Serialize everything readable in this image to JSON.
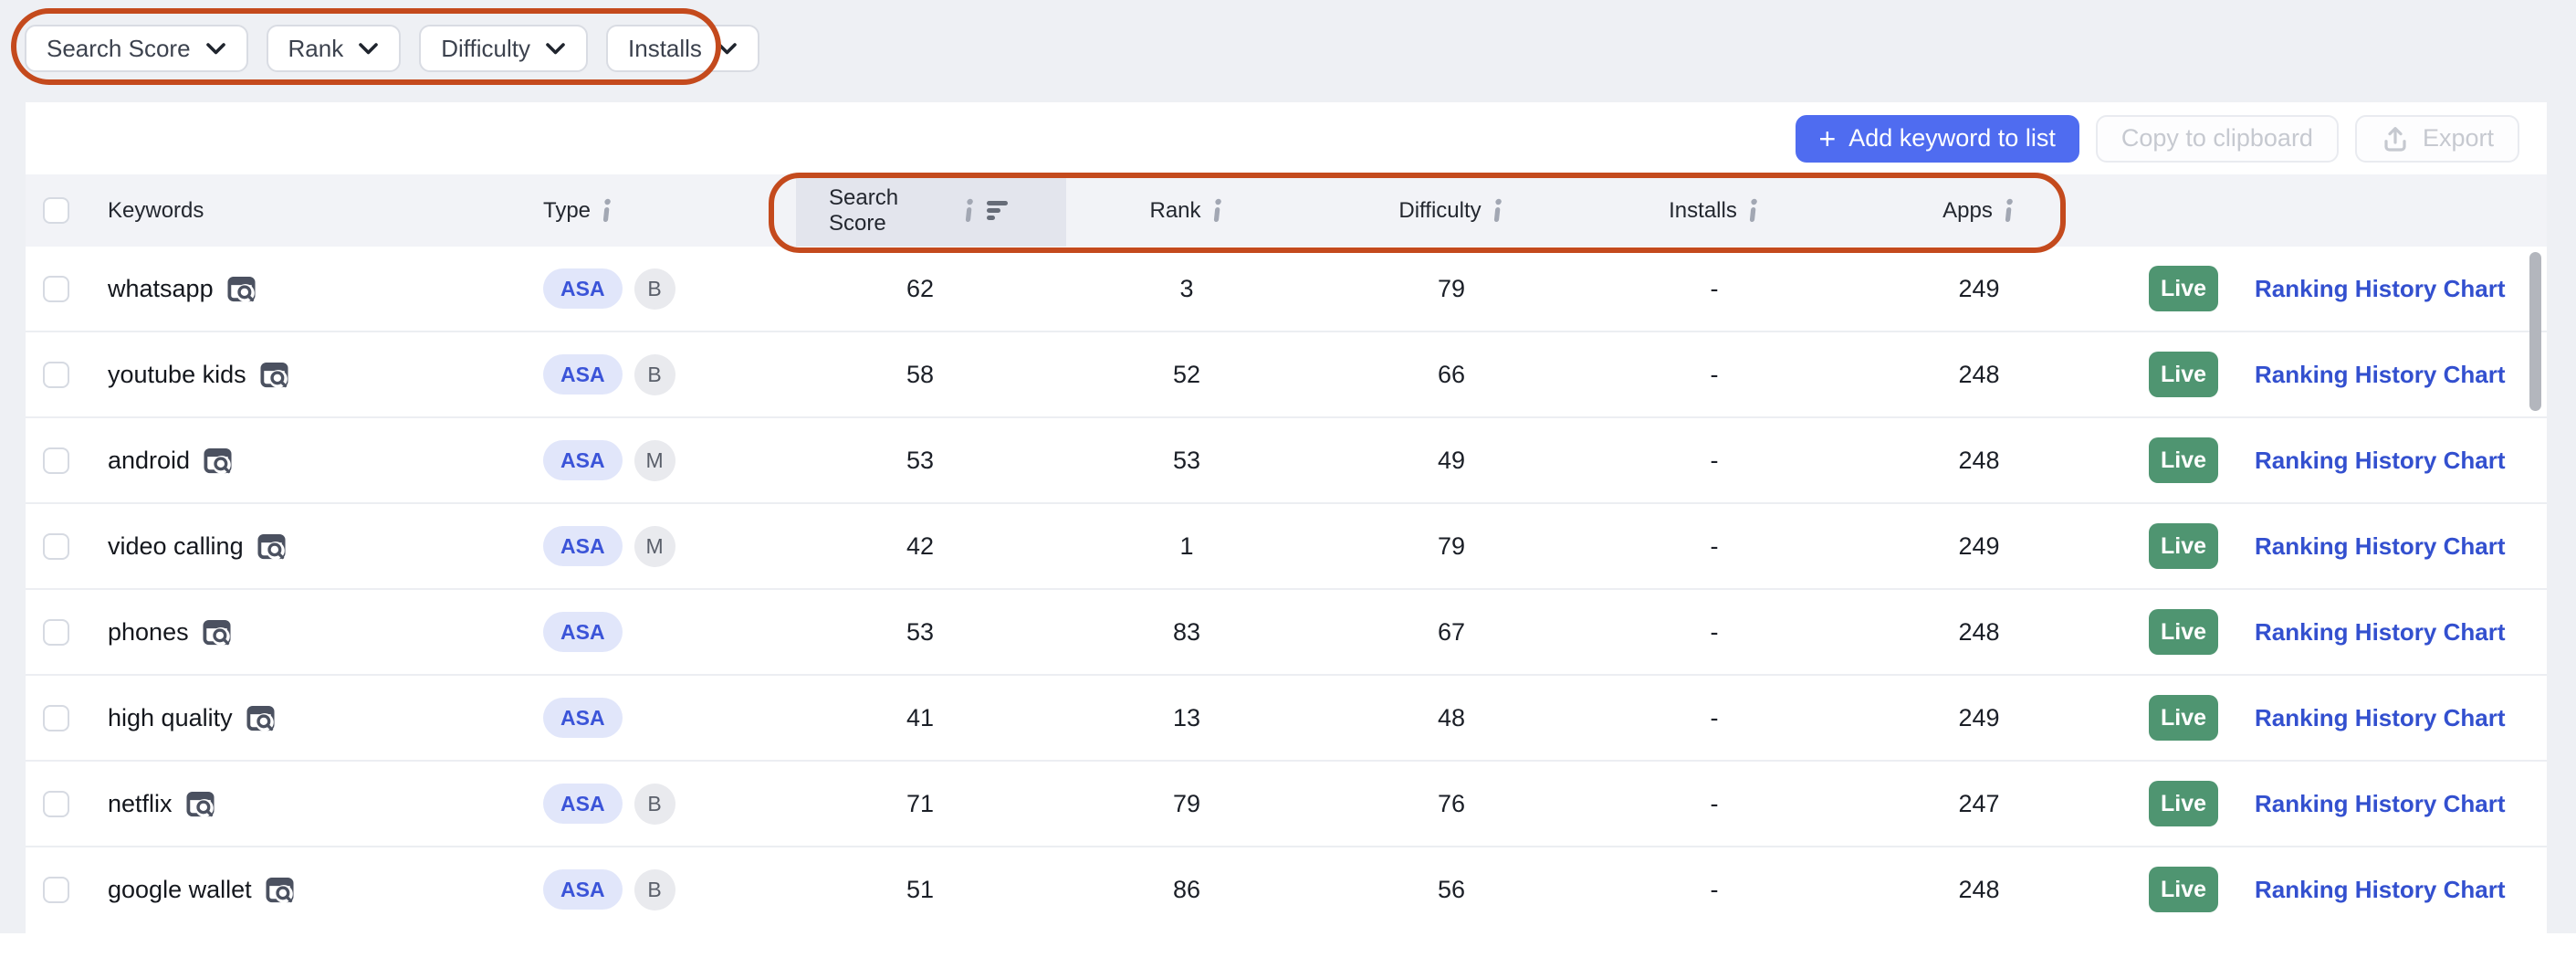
{
  "filters": {
    "items": [
      {
        "id": "search-score",
        "label": "Search Score"
      },
      {
        "id": "rank",
        "label": "Rank"
      },
      {
        "id": "difficulty",
        "label": "Difficulty"
      },
      {
        "id": "installs",
        "label": "Installs"
      }
    ]
  },
  "toolbar": {
    "add_keyword_plus": "+",
    "add_keyword_label": "Add keyword to list",
    "copy_label": "Copy to clipboard",
    "export_label": "Export"
  },
  "table": {
    "headers": {
      "keywords": "Keywords",
      "type": "Type",
      "search_score": "Search Score",
      "rank": "Rank",
      "difficulty": "Difficulty",
      "installs": "Installs",
      "apps": "Apps"
    },
    "rows": [
      {
        "keyword": "whatsapp",
        "types": [
          "ASA",
          "B"
        ],
        "search_score": "62",
        "rank": "3",
        "difficulty": "79",
        "installs": "-",
        "apps": "249",
        "status": "Live",
        "action": "Ranking History Chart"
      },
      {
        "keyword": "youtube kids",
        "types": [
          "ASA",
          "B"
        ],
        "search_score": "58",
        "rank": "52",
        "difficulty": "66",
        "installs": "-",
        "apps": "248",
        "status": "Live",
        "action": "Ranking History Chart"
      },
      {
        "keyword": "android",
        "types": [
          "ASA",
          "M"
        ],
        "search_score": "53",
        "rank": "53",
        "difficulty": "49",
        "installs": "-",
        "apps": "248",
        "status": "Live",
        "action": "Ranking History Chart"
      },
      {
        "keyword": "video calling",
        "types": [
          "ASA",
          "M"
        ],
        "search_score": "42",
        "rank": "1",
        "difficulty": "79",
        "installs": "-",
        "apps": "249",
        "status": "Live",
        "action": "Ranking History Chart"
      },
      {
        "keyword": "phones",
        "types": [
          "ASA"
        ],
        "search_score": "53",
        "rank": "83",
        "difficulty": "67",
        "installs": "-",
        "apps": "248",
        "status": "Live",
        "action": "Ranking History Chart"
      },
      {
        "keyword": "high quality",
        "types": [
          "ASA"
        ],
        "search_score": "41",
        "rank": "13",
        "difficulty": "48",
        "installs": "-",
        "apps": "249",
        "status": "Live",
        "action": "Ranking History Chart"
      },
      {
        "keyword": "netflix",
        "types": [
          "ASA",
          "B"
        ],
        "search_score": "71",
        "rank": "79",
        "difficulty": "76",
        "installs": "-",
        "apps": "247",
        "status": "Live",
        "action": "Ranking History Chart"
      },
      {
        "keyword": "google wallet",
        "types": [
          "ASA",
          "B"
        ],
        "search_score": "51",
        "rank": "86",
        "difficulty": "56",
        "installs": "-",
        "apps": "248",
        "status": "Live",
        "action": "Ranking History Chart"
      }
    ]
  },
  "colors": {
    "accent_blue": "#4f6cf0",
    "link_blue": "#3350cf",
    "live_green": "#4f9571",
    "annotation_orange": "#c44a1d",
    "asa_badge_bg": "#e1e6fa",
    "asa_badge_text": "#3b54d8",
    "page_bg": "#eef0f4"
  }
}
